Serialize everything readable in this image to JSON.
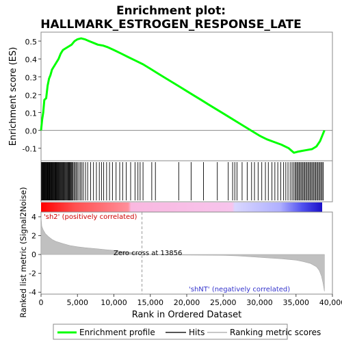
{
  "chart_data": {
    "type": "line",
    "title_line1": "Enrichment plot:",
    "title_line2": "HALLMARK_ESTROGEN_RESPONSE_LATE",
    "es_panel": {
      "ylabel": "Enrichment score (ES)",
      "ylim": [
        -0.17,
        0.55
      ],
      "yticks": [
        -0.1,
        0.0,
        0.1,
        0.2,
        0.3,
        0.4,
        0.5
      ],
      "ytick_labels": [
        "-0.1",
        "0.0",
        "0.1",
        "0.2",
        "0.3",
        "0.4",
        "0.5"
      ],
      "series_name": "Enrichment profile",
      "color": "#00ff00",
      "points": [
        [
          0,
          0.0
        ],
        [
          150,
          0.06
        ],
        [
          300,
          0.1
        ],
        [
          450,
          0.17
        ],
        [
          700,
          0.18
        ],
        [
          900,
          0.25
        ],
        [
          1100,
          0.29
        ],
        [
          1300,
          0.31
        ],
        [
          1500,
          0.34
        ],
        [
          1800,
          0.36
        ],
        [
          2100,
          0.38
        ],
        [
          2400,
          0.4
        ],
        [
          2700,
          0.43
        ],
        [
          3000,
          0.45
        ],
        [
          3400,
          0.46
        ],
        [
          3800,
          0.47
        ],
        [
          4200,
          0.48
        ],
        [
          4600,
          0.5
        ],
        [
          5000,
          0.51
        ],
        [
          5500,
          0.515
        ],
        [
          6000,
          0.51
        ],
        [
          6600,
          0.5
        ],
        [
          7200,
          0.49
        ],
        [
          7800,
          0.48
        ],
        [
          8500,
          0.475
        ],
        [
          9200,
          0.465
        ],
        [
          10000,
          0.45
        ],
        [
          11000,
          0.43
        ],
        [
          12000,
          0.41
        ],
        [
          13000,
          0.39
        ],
        [
          14000,
          0.37
        ],
        [
          15000,
          0.345
        ],
        [
          16000,
          0.32
        ],
        [
          17000,
          0.295
        ],
        [
          18000,
          0.27
        ],
        [
          19000,
          0.245
        ],
        [
          20000,
          0.22
        ],
        [
          21000,
          0.195
        ],
        [
          22000,
          0.17
        ],
        [
          23000,
          0.145
        ],
        [
          24000,
          0.12
        ],
        [
          25000,
          0.095
        ],
        [
          26000,
          0.07
        ],
        [
          27000,
          0.045
        ],
        [
          28000,
          0.02
        ],
        [
          29000,
          -0.005
        ],
        [
          30000,
          -0.03
        ],
        [
          31000,
          -0.05
        ],
        [
          32000,
          -0.065
        ],
        [
          33000,
          -0.08
        ],
        [
          34000,
          -0.1
        ],
        [
          34700,
          -0.125
        ],
        [
          35200,
          -0.12
        ],
        [
          35800,
          -0.115
        ],
        [
          36500,
          -0.11
        ],
        [
          37200,
          -0.105
        ],
        [
          37800,
          -0.09
        ],
        [
          38300,
          -0.06
        ],
        [
          38600,
          -0.03
        ],
        [
          38900,
          0.0
        ]
      ]
    },
    "hits": [
      60,
      130,
      210,
      280,
      340,
      420,
      490,
      560,
      640,
      710,
      780,
      850,
      920,
      990,
      1060,
      1130,
      1200,
      1270,
      1340,
      1420,
      1500,
      1580,
      1660,
      1740,
      1820,
      1900,
      1980,
      2060,
      2140,
      2220,
      2300,
      2390,
      2480,
      2570,
      2660,
      2750,
      2840,
      2930,
      3020,
      3110,
      3200,
      3300,
      3400,
      3500,
      3600,
      3700,
      3800,
      3900,
      4000,
      4100,
      4200,
      4300,
      4400,
      4550,
      4700,
      4850,
      5000,
      5200,
      5400,
      5600,
      5800,
      6100,
      6400,
      6800,
      7200,
      7600,
      8000,
      8300,
      8600,
      9000,
      9400,
      9800,
      10300,
      10800,
      11200,
      11700,
      12300,
      12900,
      13300,
      13600,
      14000,
      15200,
      15700,
      18900,
      20600,
      22300,
      24200,
      25700,
      26300,
      26600,
      26900,
      27600,
      28300,
      28900,
      29300,
      29800,
      30300,
      30800,
      31200,
      31700,
      32100,
      32500,
      32900,
      33300,
      33600,
      33900,
      34200,
      34450,
      34650,
      34850,
      35000,
      35150,
      35300,
      35450,
      35600,
      35750,
      35900,
      36050,
      36200,
      36350,
      36500,
      36650,
      36800,
      36950,
      37100,
      37250,
      37400,
      37550,
      37700,
      37850,
      38000,
      38150,
      38300,
      38450,
      38600,
      38750
    ],
    "metric_panel": {
      "ylabel": "Ranked list metric (Signal2Noise)",
      "ylim": [
        -4.2,
        4.5
      ],
      "yticks": [
        -4,
        -2,
        0,
        2,
        4
      ],
      "ytick_labels": [
        "-4",
        "-2",
        "0",
        "2",
        "4"
      ],
      "zero_cross_rank": 13856,
      "zero_cross_label": "Zero cross at 13856",
      "pos_label": "'sh2' (positively correlated)",
      "neg_label": "'shNT' (negatively correlated)",
      "profile": [
        [
          0,
          4.0
        ],
        [
          100,
          3.0
        ],
        [
          300,
          2.6
        ],
        [
          600,
          2.2
        ],
        [
          1000,
          1.9
        ],
        [
          1500,
          1.6
        ],
        [
          2000,
          1.4
        ],
        [
          3000,
          1.15
        ],
        [
          4000,
          0.95
        ],
        [
          5000,
          0.82
        ],
        [
          6000,
          0.72
        ],
        [
          7000,
          0.65
        ],
        [
          8000,
          0.58
        ],
        [
          9000,
          0.5
        ],
        [
          10000,
          0.43
        ],
        [
          11000,
          0.33
        ],
        [
          12000,
          0.25
        ],
        [
          13000,
          0.15
        ],
        [
          13856,
          0.0
        ],
        [
          15000,
          -0.03
        ],
        [
          20000,
          -0.06
        ],
        [
          25000,
          -0.09
        ],
        [
          27000,
          -0.15
        ],
        [
          30000,
          -0.3
        ],
        [
          33000,
          -0.45
        ],
        [
          35000,
          -0.6
        ],
        [
          36000,
          -0.75
        ],
        [
          37000,
          -0.95
        ],
        [
          37800,
          -1.3
        ],
        [
          38200,
          -1.7
        ],
        [
          38500,
          -2.3
        ],
        [
          38700,
          -3.0
        ],
        [
          38900,
          -3.9
        ]
      ]
    },
    "xaxis": {
      "xlabel": "Rank in Ordered Dataset",
      "xlim": [
        0,
        40000
      ],
      "xticks": [
        0,
        5000,
        10000,
        15000,
        20000,
        25000,
        30000,
        35000,
        40000
      ],
      "xtick_labels": [
        "0",
        "5,000",
        "10,000",
        "15,000",
        "20,000",
        "25,000",
        "30,000",
        "35,000",
        "40,000"
      ],
      "n_ranks": 38900
    },
    "legend": {
      "placement": "bottom",
      "items": [
        {
          "label": "Enrichment profile",
          "color": "#00ff00"
        },
        {
          "label": "Hits",
          "color": "#555555"
        },
        {
          "label": "Ranking metric scores",
          "color": "#c8c8c8"
        }
      ]
    }
  }
}
